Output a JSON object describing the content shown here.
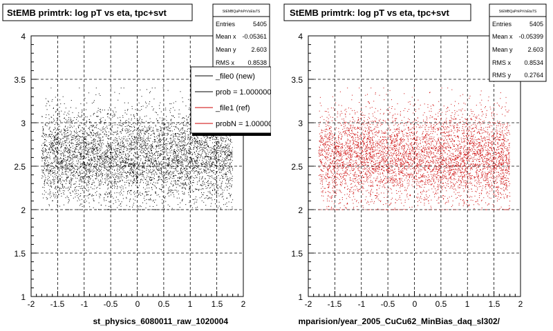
{
  "chart_data": [
    {
      "type": "scatter",
      "title": "StEMB primtrk: log pT vs eta, tpc+svt",
      "xlabel": "st_physics_6080011_raw_1020004",
      "ylabel": "",
      "xlim": [
        -2,
        2
      ],
      "ylim": [
        1,
        4
      ],
      "xticks": [
        "-2",
        "-1.5",
        "-1",
        "-0.5",
        "0",
        "0.5",
        "1",
        "1.5",
        "2"
      ],
      "yticks": [
        "1",
        "1.5",
        "2",
        "2.5",
        "3",
        "3.5",
        "4"
      ],
      "grid": true,
      "marker_color": "#000000",
      "distribution": {
        "x_range": [
          -1.8,
          1.8
        ],
        "y_range": [
          2.0,
          3.4
        ],
        "mean_x": -0.05361,
        "mean_y": 2.603,
        "rms_x": 0.8538
      },
      "stats": {
        "name": "StEMBQaPrkPrVsEtaTS",
        "entries_label": "Entries",
        "entries": "5405",
        "mean_x_label": "Mean x",
        "mean_x": "-0.05361",
        "mean_y_label": "Mean y",
        "mean_y": "2.603",
        "rms_x_label": "RMS x",
        "rms_x": "0.8538"
      },
      "legend": {
        "entries": [
          {
            "label": "_file0 (new)",
            "color": "#000000"
          },
          {
            "label": "prob = 1.000000",
            "color": "#000000"
          },
          {
            "label": "_file1 (ref)",
            "color": "#cc0000"
          },
          {
            "label": "probN = 1.000000",
            "color": "#cc0000"
          }
        ]
      }
    },
    {
      "type": "scatter",
      "title": "StEMB primtrk: log pT vs eta, tpc+svt",
      "xlabel": "mparision/year_2005_CuCu62_MinBias_daq_sl302/",
      "ylabel": "",
      "xlim": [
        -2,
        2
      ],
      "ylim": [
        1,
        4
      ],
      "xticks": [
        "-2",
        "-1.5",
        "-1",
        "-0.5",
        "0",
        "0.5",
        "1",
        "1.5",
        "2"
      ],
      "yticks": [
        "1",
        "1.5",
        "2",
        "2.5",
        "3",
        "3.5",
        "4"
      ],
      "grid": true,
      "marker_color": "#cc0000",
      "distribution": {
        "x_range": [
          -1.8,
          1.8
        ],
        "y_range": [
          2.0,
          3.4
        ],
        "mean_x": -0.05399,
        "mean_y": 2.603,
        "rms_x": 0.8534
      },
      "stats": {
        "name": "StEMBQaPrkPrVsEtaTS",
        "entries_label": "Entries",
        "entries": "5405",
        "mean_x_label": "Mean x",
        "mean_x": "-0.05399",
        "mean_y_label": "Mean y",
        "mean_y": "2.603",
        "rms_x_label": "RMS x",
        "rms_x": "0.8534",
        "rms_y_label": "RMS y",
        "rms_y": "0.2764"
      }
    }
  ]
}
